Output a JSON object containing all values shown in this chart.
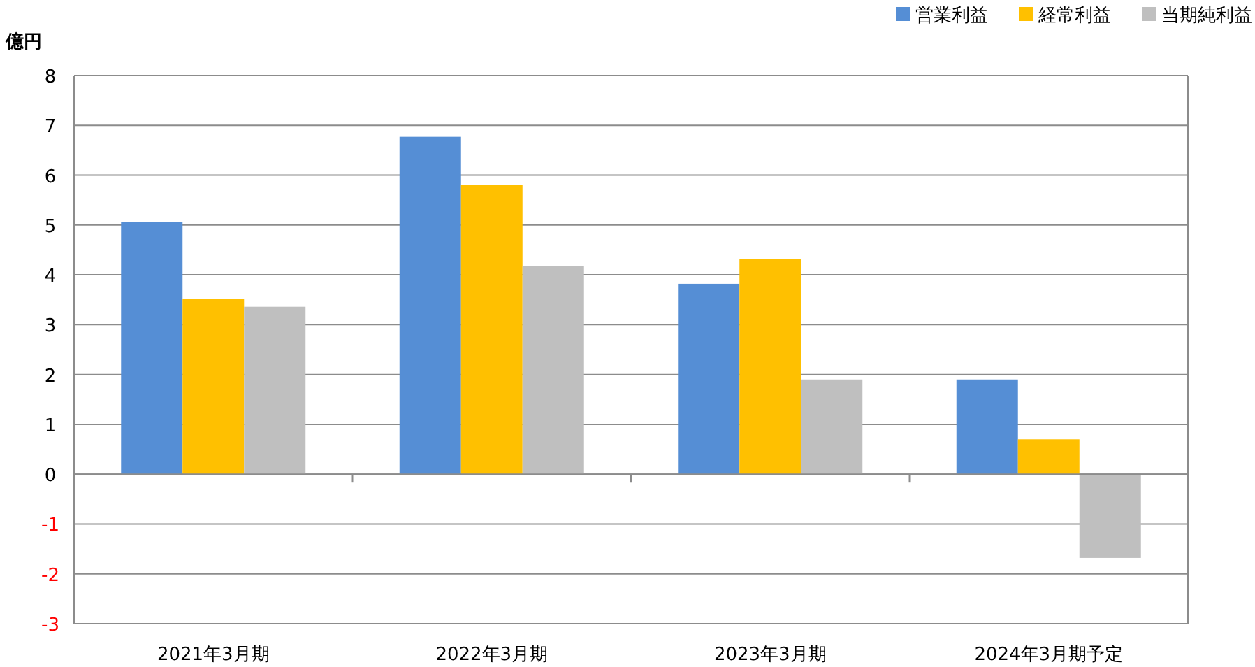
{
  "chart_data": {
    "type": "bar",
    "ylabel": "億円",
    "categories": [
      "2021年3月期",
      "2022年3月期",
      "2023年3月期",
      "2024年3月期予定"
    ],
    "series": [
      {
        "name": "営業利益",
        "color": "#558ed5",
        "values": [
          5.06,
          6.77,
          3.82,
          1.9
        ]
      },
      {
        "name": "経常利益",
        "color": "#ffc000",
        "values": [
          3.52,
          5.8,
          4.31,
          0.7
        ]
      },
      {
        "name": "当期純利益",
        "color": "#bfbfbf",
        "values": [
          3.36,
          4.17,
          1.9,
          -1.68
        ]
      }
    ],
    "ylim": [
      -3,
      8
    ],
    "yticks": [
      -3,
      -2,
      -1,
      0,
      1,
      2,
      3,
      4,
      5,
      6,
      7,
      8
    ],
    "grid": "y",
    "legend": "top right"
  }
}
